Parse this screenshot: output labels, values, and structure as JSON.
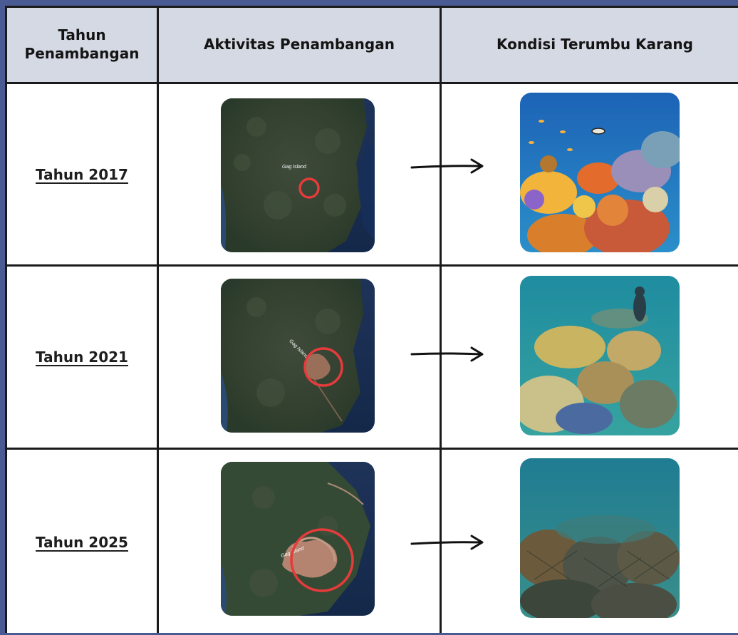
{
  "table": {
    "headers": {
      "year_line1": "Tahun",
      "year_line2": "Penambangan",
      "mining": "Aktivitas Penambangan",
      "reef": "Kondisi Terumbu Karang"
    },
    "rows": [
      {
        "year": "Tahun 2017",
        "map_label": "Gag Island",
        "mining_state": "minimal clearing",
        "reef_state": "healthy colorful reef with fish"
      },
      {
        "year": "Tahun 2021",
        "map_label": "Gag Island",
        "mining_state": "expanding clearing",
        "reef_state": "coral with diver, partially degraded"
      },
      {
        "year": "Tahun 2025",
        "map_label": "Gag Island",
        "mining_state": "large clearing",
        "reef_state": "degraded grey coral rubble"
      }
    ]
  },
  "colors": {
    "header_bg": "#d4d9e3",
    "border": "#1a1a1a",
    "frame_bg": "#4a5b93",
    "circle": "#e63b3b"
  },
  "icons": [
    "right-arrow-icon"
  ]
}
